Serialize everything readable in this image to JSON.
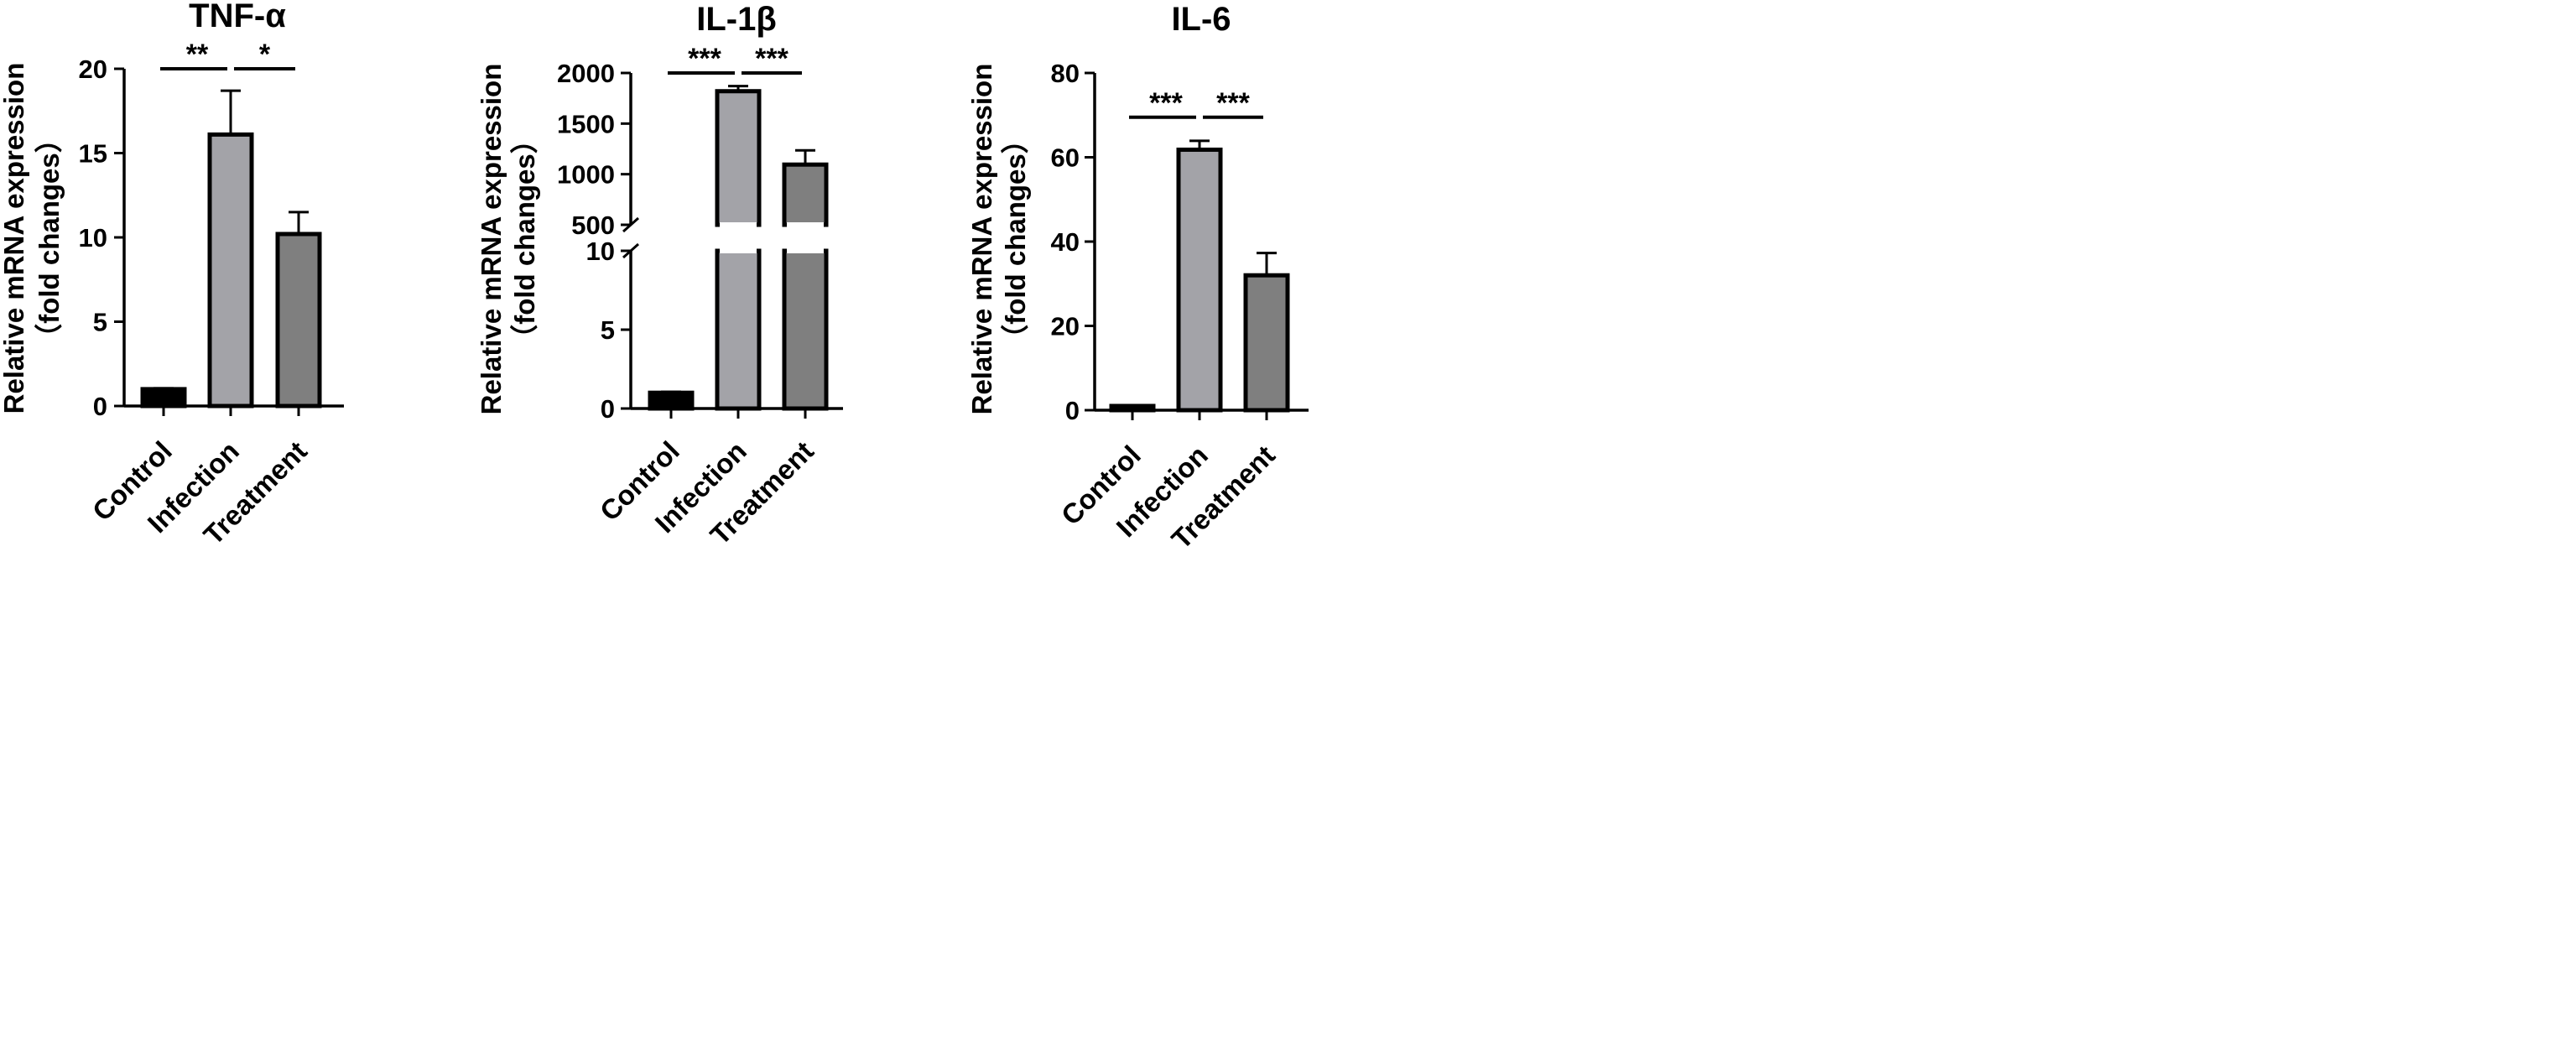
{
  "figure": {
    "background": "#ffffff"
  },
  "colors": {
    "control": "#000000",
    "infection": "#a3a3a8",
    "treatment": "#7f7f7f",
    "stroke": "#000000"
  },
  "chart_data": [
    {
      "type": "bar",
      "title": "TNF-α",
      "ylabel_line1": "Relative mRNA expression",
      "ylabel_line2": "（fold changes）",
      "categories": [
        "Control",
        "Infection",
        "Treatment"
      ],
      "values": [
        1,
        16.1,
        10.2
      ],
      "errors": [
        0.05,
        2.6,
        1.3
      ],
      "ylim": [
        0,
        20
      ],
      "yticks": [
        0,
        5,
        10,
        15,
        20
      ],
      "significance": [
        {
          "from": 0,
          "to": 1,
          "label": "**",
          "y": 20
        },
        {
          "from": 1,
          "to": 2,
          "label": "*",
          "y": 20
        }
      ]
    },
    {
      "type": "bar",
      "title": "IL-1β",
      "ylabel_line1": "Relative mRNA expression",
      "ylabel_line2": "（fold changes）",
      "categories": [
        "Control",
        "Infection",
        "Treatment"
      ],
      "values": [
        1,
        1820,
        1095
      ],
      "errors": [
        0.06,
        50,
        140
      ],
      "axis_break": true,
      "lower_segment": {
        "range": [
          0,
          10
        ],
        "yticks": [
          0,
          5,
          10
        ]
      },
      "upper_segment": {
        "range": [
          500,
          2000
        ],
        "yticks": [
          500,
          1000,
          1500,
          2000
        ]
      },
      "significance": [
        {
          "from": 0,
          "to": 1,
          "label": "***",
          "y": 2000
        },
        {
          "from": 1,
          "to": 2,
          "label": "***",
          "y": 2000
        }
      ]
    },
    {
      "type": "bar",
      "title": "IL-6",
      "ylabel_line1": "Relative mRNA expression",
      "ylabel_line2": "（fold changes）",
      "categories": [
        "Control",
        "Infection",
        "Treatment"
      ],
      "values": [
        1,
        61.8,
        32
      ],
      "errors": [
        0.15,
        2.1,
        5.3
      ],
      "ylim": [
        0,
        80
      ],
      "yticks": [
        0,
        20,
        40,
        60,
        80
      ],
      "significance": [
        {
          "from": 0,
          "to": 1,
          "label": "***",
          "y": 69.5
        },
        {
          "from": 1,
          "to": 2,
          "label": "***",
          "y": 69.5
        }
      ]
    }
  ]
}
